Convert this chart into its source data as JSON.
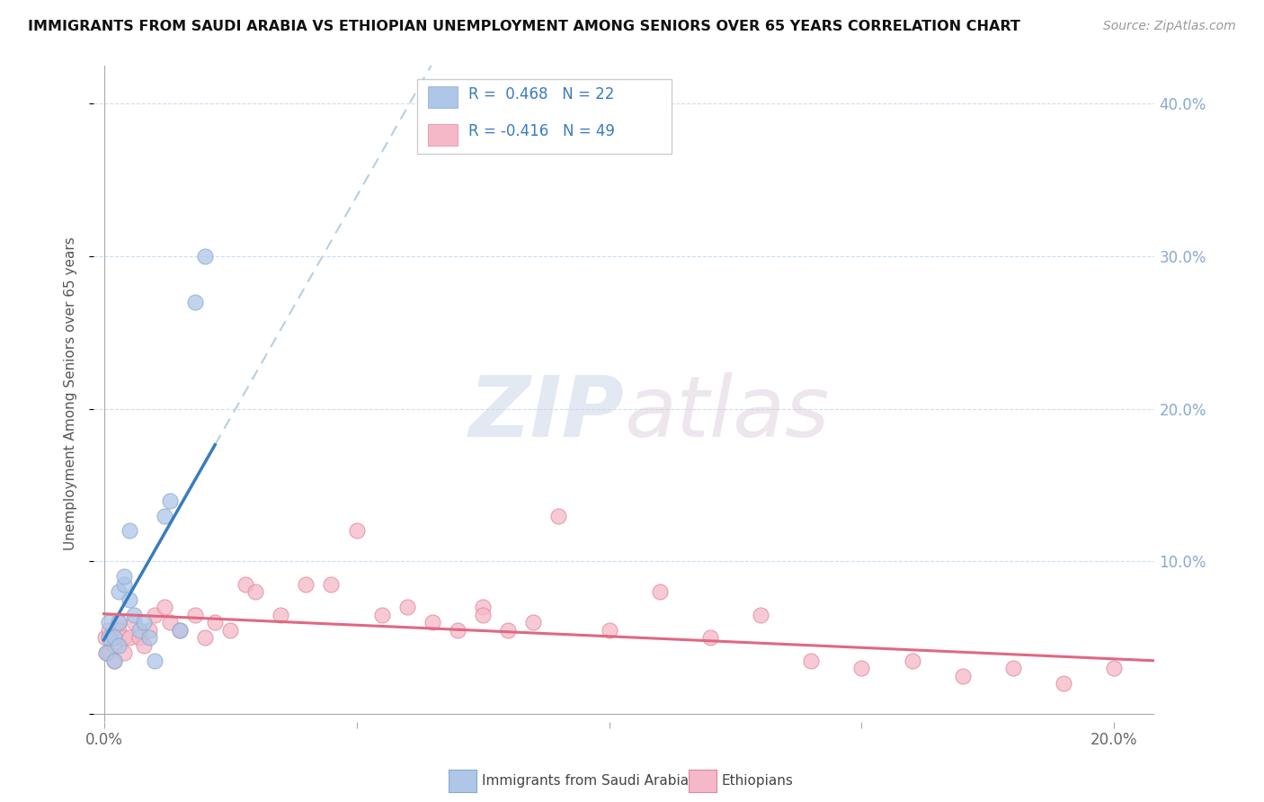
{
  "title": "IMMIGRANTS FROM SAUDI ARABIA VS ETHIOPIAN UNEMPLOYMENT AMONG SENIORS OVER 65 YEARS CORRELATION CHART",
  "source": "Source: ZipAtlas.com",
  "ylabel": "Unemployment Among Seniors over 65 years",
  "legend_label1": "Immigrants from Saudi Arabia",
  "legend_label2": "Ethiopians",
  "r1": 0.468,
  "n1": 22,
  "r2": -0.416,
  "n2": 49,
  "xlim": [
    -0.002,
    0.208
  ],
  "ylim": [
    -0.005,
    0.425
  ],
  "xticks": [
    0.0,
    0.05,
    0.1,
    0.15,
    0.2
  ],
  "xtick_labels_show": [
    "0.0%",
    "",
    "",
    "",
    "20.0%"
  ],
  "yticks": [
    0.0,
    0.1,
    0.2,
    0.3,
    0.4
  ],
  "color_blue": "#aec6e8",
  "color_pink": "#f5b8c8",
  "line_color_blue": "#3a7bbf",
  "line_color_pink": "#e06882",
  "dashed_color": "#b8cfe0",
  "watermark_zip": "ZIP",
  "watermark_atlas": "atlas",
  "saudi_x": [
    0.0005,
    0.001,
    0.001,
    0.002,
    0.002,
    0.003,
    0.003,
    0.003,
    0.004,
    0.004,
    0.005,
    0.005,
    0.006,
    0.007,
    0.008,
    0.009,
    0.01,
    0.012,
    0.013,
    0.015,
    0.018,
    0.02
  ],
  "saudi_y": [
    0.04,
    0.05,
    0.06,
    0.035,
    0.05,
    0.045,
    0.06,
    0.08,
    0.085,
    0.09,
    0.075,
    0.12,
    0.065,
    0.055,
    0.06,
    0.05,
    0.035,
    0.13,
    0.14,
    0.055,
    0.27,
    0.3
  ],
  "ethiopian_x": [
    0.0002,
    0.0005,
    0.001,
    0.001,
    0.002,
    0.002,
    0.003,
    0.003,
    0.004,
    0.004,
    0.005,
    0.006,
    0.007,
    0.008,
    0.009,
    0.01,
    0.012,
    0.013,
    0.015,
    0.018,
    0.02,
    0.022,
    0.025,
    0.028,
    0.03,
    0.035,
    0.04,
    0.045,
    0.05,
    0.055,
    0.06,
    0.065,
    0.07,
    0.075,
    0.08,
    0.085,
    0.09,
    0.1,
    0.11,
    0.12,
    0.13,
    0.14,
    0.15,
    0.16,
    0.17,
    0.18,
    0.19,
    0.2,
    0.075
  ],
  "ethiopian_y": [
    0.05,
    0.04,
    0.04,
    0.055,
    0.035,
    0.045,
    0.06,
    0.055,
    0.05,
    0.04,
    0.05,
    0.06,
    0.05,
    0.045,
    0.055,
    0.065,
    0.07,
    0.06,
    0.055,
    0.065,
    0.05,
    0.06,
    0.055,
    0.085,
    0.08,
    0.065,
    0.085,
    0.085,
    0.12,
    0.065,
    0.07,
    0.06,
    0.055,
    0.07,
    0.055,
    0.06,
    0.13,
    0.055,
    0.08,
    0.05,
    0.065,
    0.035,
    0.03,
    0.035,
    0.025,
    0.03,
    0.02,
    0.03,
    0.065
  ]
}
